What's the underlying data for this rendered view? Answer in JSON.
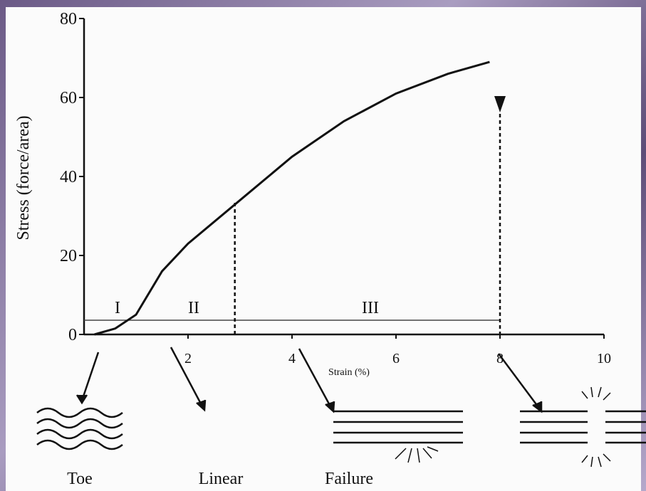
{
  "chart_data": {
    "type": "line",
    "y_label": "Stress (force/area)",
    "x_label": "Strain (%)",
    "x": [
      0.2,
      0.6,
      1,
      1.5,
      2,
      3,
      4,
      5,
      6,
      7,
      7.8
    ],
    "series": [
      {
        "color": "#111111",
        "values": [
          0,
          1.5,
          5,
          16,
          23,
          34,
          45,
          54,
          61,
          66,
          69
        ]
      }
    ],
    "xlim": [
      0,
      10
    ],
    "ylim": [
      0,
      80
    ],
    "xticks": [
      2,
      4,
      6,
      8,
      10
    ],
    "yticks": [
      0,
      20,
      40,
      60,
      80
    ],
    "boundaries": [
      2.9,
      8
    ],
    "regions": [
      "I",
      "II",
      "III"
    ],
    "stages": [
      "Toe",
      "Linear",
      "Failure"
    ]
  }
}
